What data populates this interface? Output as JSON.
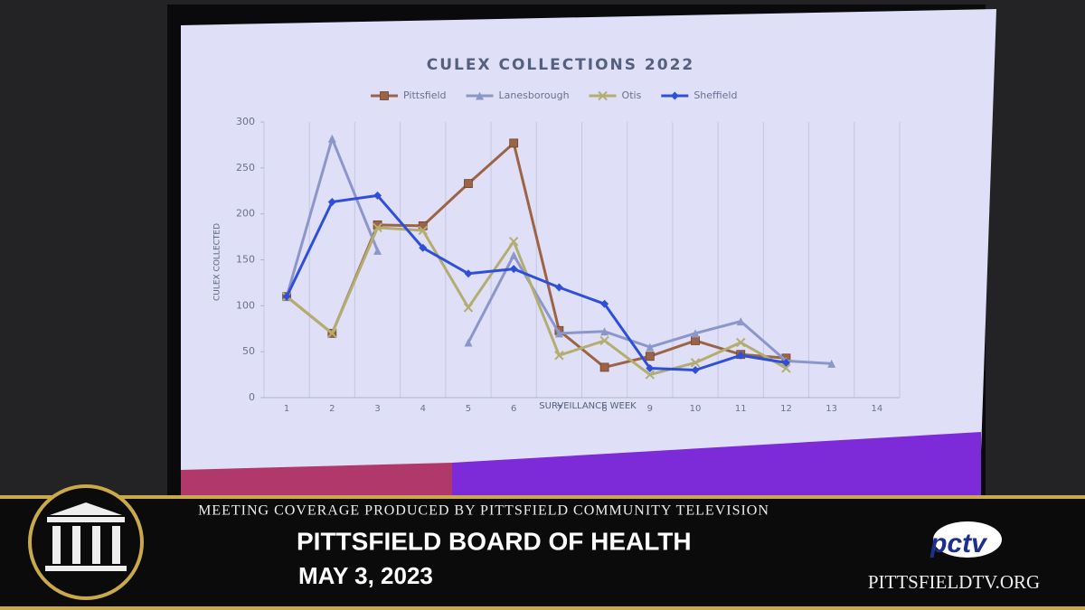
{
  "chart_data": {
    "type": "line",
    "title": "CULEX COLLECTIONS 2022",
    "x_label": "SURVEILLANCE WEEK",
    "y_label": "CULEX COLLECTED",
    "categories": [
      "1",
      "2",
      "3",
      "4",
      "5",
      "6",
      "7",
      "8",
      "9",
      "10",
      "11",
      "12",
      "13",
      "14"
    ],
    "ylim": [
      0,
      300
    ],
    "yticks": [
      0,
      50,
      100,
      150,
      200,
      250,
      300
    ],
    "grid": "x",
    "legend": "top",
    "series": [
      {
        "name": "Pittsfield",
        "color": "#9c6446",
        "marker": "square",
        "values": [
          110,
          70,
          188,
          187,
          233,
          277,
          73,
          33,
          45,
          62,
          47,
          43,
          null,
          null
        ]
      },
      {
        "name": "Lanesborough",
        "color": "#8c96c8",
        "marker": "triangle",
        "values": [
          110,
          282,
          160,
          null,
          60,
          155,
          70,
          72,
          55,
          70,
          83,
          40,
          37,
          null
        ]
      },
      {
        "name": "Otis",
        "color": "#b4ad72",
        "marker": "x",
        "values": [
          110,
          70,
          185,
          182,
          98,
          170,
          46,
          62,
          25,
          38,
          60,
          32,
          null,
          null
        ]
      },
      {
        "name": "Sheffield",
        "color": "#2f4fd8",
        "marker": "diamond",
        "values": [
          110,
          213,
          220,
          163,
          135,
          140,
          120,
          102,
          32,
          30,
          46,
          38,
          null,
          null
        ]
      }
    ]
  },
  "banner": {
    "line1": "MEETING COVERAGE PRODUCED BY PITTSFIELD COMMUNITY TELEVISION",
    "title": "PITTSFIELD BOARD OF HEALTH",
    "date": "MAY 3, 2023",
    "logo": "pctv",
    "url": "PITTSFIELDTV.ORG"
  }
}
